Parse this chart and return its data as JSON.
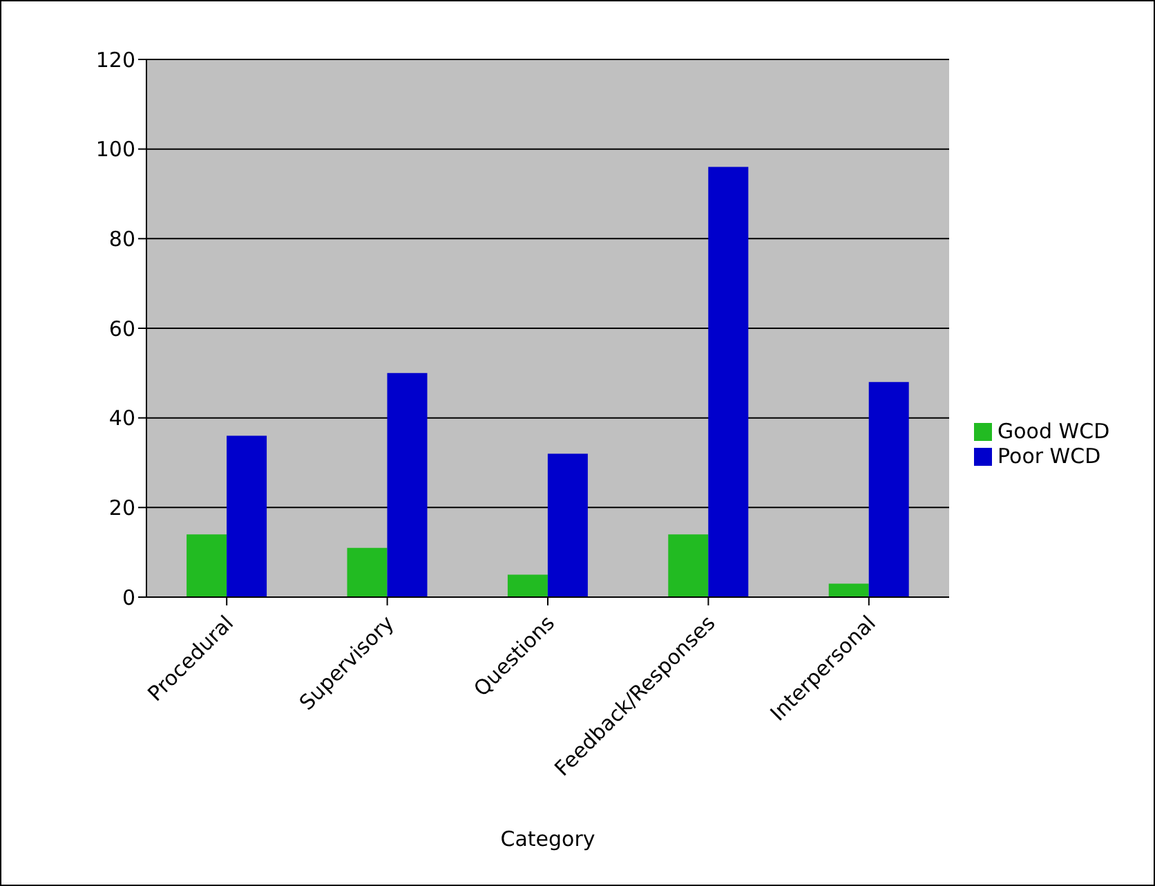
{
  "chart_data": {
    "type": "bar",
    "xlabel": "Category",
    "categories": [
      "Procedural",
      "Supervisory",
      "Questions",
      "Feedback/Responses",
      "Interpersonal"
    ],
    "series": [
      {
        "name": "Good WCD",
        "color": "#22bb22",
        "values": [
          14,
          11,
          5,
          14,
          3
        ]
      },
      {
        "name": "Poor WCD",
        "color": "#0000cc",
        "values": [
          36,
          50,
          32,
          96,
          48
        ]
      }
    ],
    "ylim": [
      0,
      120
    ],
    "yticks": [
      0,
      20,
      40,
      60,
      80,
      100,
      120
    ],
    "grid": "y",
    "legend": "right"
  }
}
